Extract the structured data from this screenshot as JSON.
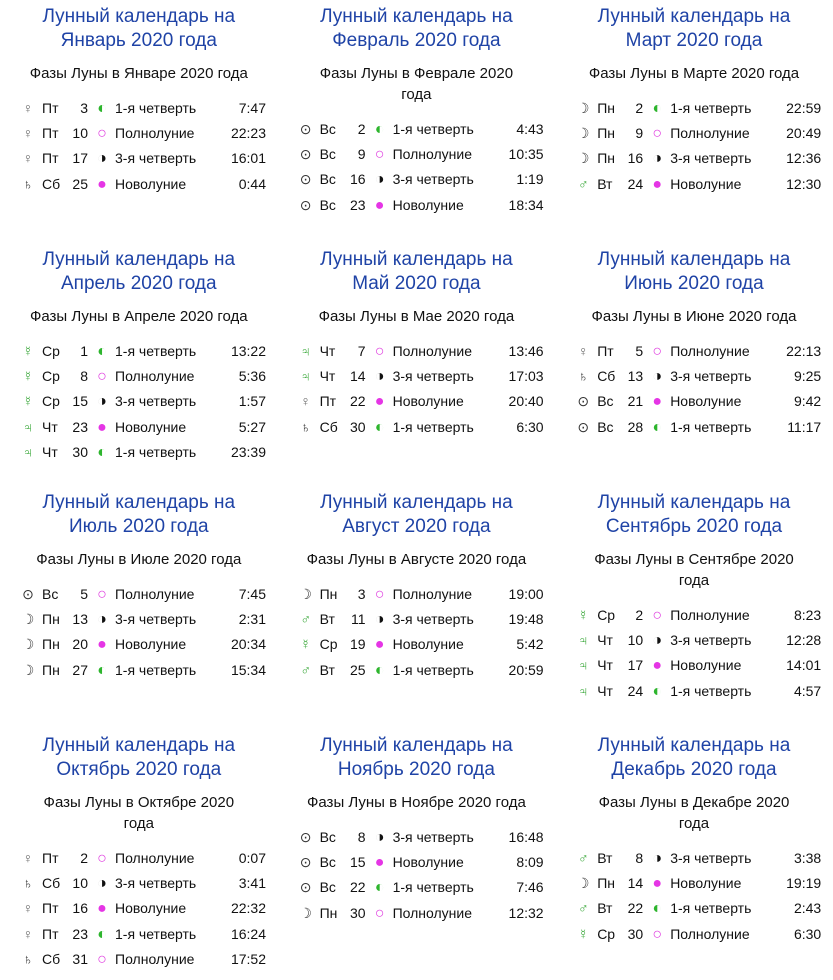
{
  "symbol_colors": {
    "♀": "#666666",
    "♄": "#333333",
    "⊙": "#333333",
    "☽": "#333333",
    "♂": "#3aa83a",
    "☿": "#3aa83a",
    "♃": "#3aa83a",
    "◐": "#2db52d",
    "○": "#e040e0",
    "◑": "#111111",
    "●": "#e535e5"
  },
  "months": [
    {
      "title": [
        "Лунный календарь на",
        "Январь 2020 года"
      ],
      "subtitle": [
        "Фазы Луны в Январе 2020 года"
      ],
      "rows": [
        [
          "♀",
          "Пт",
          3,
          "◐",
          "1-я четверть",
          "7:47"
        ],
        [
          "♀",
          "Пт",
          10,
          "○",
          "Полнолуние",
          "22:23"
        ],
        [
          "♀",
          "Пт",
          17,
          "◑",
          "3-я четверть",
          "16:01"
        ],
        [
          "♄",
          "Сб",
          25,
          "●",
          "Новолуние",
          "0:44"
        ]
      ]
    },
    {
      "title": [
        "Лунный календарь на",
        "Февраль 2020 года"
      ],
      "subtitle": [
        "Фазы Луны в Феврале 2020",
        "года"
      ],
      "rows": [
        [
          "⊙",
          "Вс",
          2,
          "◐",
          "1-я четверть",
          "4:43"
        ],
        [
          "⊙",
          "Вс",
          9,
          "○",
          "Полнолуние",
          "10:35"
        ],
        [
          "⊙",
          "Вс",
          16,
          "◑",
          "3-я четверть",
          "1:19"
        ],
        [
          "⊙",
          "Вс",
          23,
          "●",
          "Новолуние",
          "18:34"
        ]
      ]
    },
    {
      "title": [
        "Лунный календарь на",
        "Март 2020 года"
      ],
      "subtitle": [
        "Фазы Луны в Марте 2020 года"
      ],
      "rows": [
        [
          "☽",
          "Пн",
          2,
          "◐",
          "1-я четверть",
          "22:59"
        ],
        [
          "☽",
          "Пн",
          9,
          "○",
          "Полнолуние",
          "20:49"
        ],
        [
          "☽",
          "Пн",
          16,
          "◑",
          "3-я четверть",
          "12:36"
        ],
        [
          "♂",
          "Вт",
          24,
          "●",
          "Новолуние",
          "12:30"
        ]
      ]
    },
    {
      "title": [
        "Лунный календарь на",
        "Апрель 2020 года"
      ],
      "subtitle": [
        "Фазы Луны в Апреле 2020 года"
      ],
      "rows": [
        [
          "☿",
          "Ср",
          1,
          "◐",
          "1-я четверть",
          "13:22"
        ],
        [
          "☿",
          "Ср",
          8,
          "○",
          "Полнолуние",
          "5:36"
        ],
        [
          "☿",
          "Ср",
          15,
          "◑",
          "3-я четверть",
          "1:57"
        ],
        [
          "♃",
          "Чт",
          23,
          "●",
          "Новолуние",
          "5:27"
        ],
        [
          "♃",
          "Чт",
          30,
          "◐",
          "1-я четверть",
          "23:39"
        ]
      ]
    },
    {
      "title": [
        "Лунный календарь на",
        "Май 2020 года"
      ],
      "subtitle": [
        "Фазы Луны в Мае 2020 года"
      ],
      "rows": [
        [
          "♃",
          "Чт",
          7,
          "○",
          "Полнолуние",
          "13:46"
        ],
        [
          "♃",
          "Чт",
          14,
          "◑",
          "3-я четверть",
          "17:03"
        ],
        [
          "♀",
          "Пт",
          22,
          "●",
          "Новолуние",
          "20:40"
        ],
        [
          "♄",
          "Сб",
          30,
          "◐",
          "1-я четверть",
          "6:30"
        ]
      ]
    },
    {
      "title": [
        "Лунный календарь на",
        "Июнь 2020 года"
      ],
      "subtitle": [
        "Фазы Луны в Июне 2020 года"
      ],
      "rows": [
        [
          "♀",
          "Пт",
          5,
          "○",
          "Полнолуние",
          "22:13"
        ],
        [
          "♄",
          "Сб",
          13,
          "◑",
          "3-я четверть",
          "9:25"
        ],
        [
          "⊙",
          "Вс",
          21,
          "●",
          "Новолуние",
          "9:42"
        ],
        [
          "⊙",
          "Вс",
          28,
          "◐",
          "1-я четверть",
          "11:17"
        ]
      ]
    },
    {
      "title": [
        "Лунный календарь на",
        "Июль 2020 года"
      ],
      "subtitle": [
        "Фазы Луны в Июле 2020 года"
      ],
      "rows": [
        [
          "⊙",
          "Вс",
          5,
          "○",
          "Полнолуние",
          "7:45"
        ],
        [
          "☽",
          "Пн",
          13,
          "◑",
          "3-я четверть",
          "2:31"
        ],
        [
          "☽",
          "Пн",
          20,
          "●",
          "Новолуние",
          "20:34"
        ],
        [
          "☽",
          "Пн",
          27,
          "◐",
          "1-я четверть",
          "15:34"
        ]
      ]
    },
    {
      "title": [
        "Лунный календарь на",
        "Август 2020 года"
      ],
      "subtitle": [
        "Фазы Луны в Августе 2020 года"
      ],
      "rows": [
        [
          "☽",
          "Пн",
          3,
          "○",
          "Полнолуние",
          "19:00"
        ],
        [
          "♂",
          "Вт",
          11,
          "◑",
          "3-я четверть",
          "19:48"
        ],
        [
          "☿",
          "Ср",
          19,
          "●",
          "Новолуние",
          "5:42"
        ],
        [
          "♂",
          "Вт",
          25,
          "◐",
          "1-я четверть",
          "20:59"
        ]
      ]
    },
    {
      "title": [
        "Лунный календарь на",
        "Сентябрь 2020 года"
      ],
      "subtitle": [
        "Фазы Луны в Сентябре 2020",
        "года"
      ],
      "rows": [
        [
          "☿",
          "Ср",
          2,
          "○",
          "Полнолуние",
          "8:23"
        ],
        [
          "♃",
          "Чт",
          10,
          "◑",
          "3-я четверть",
          "12:28"
        ],
        [
          "♃",
          "Чт",
          17,
          "●",
          "Новолуние",
          "14:01"
        ],
        [
          "♃",
          "Чт",
          24,
          "◐",
          "1-я четверть",
          "4:57"
        ]
      ]
    },
    {
      "title": [
        "Лунный календарь на",
        "Октябрь 2020 года"
      ],
      "subtitle": [
        "Фазы Луны в Октябре 2020",
        "года"
      ],
      "rows": [
        [
          "♀",
          "Пт",
          2,
          "○",
          "Полнолуние",
          "0:07"
        ],
        [
          "♄",
          "Сб",
          10,
          "◑",
          "3-я четверть",
          "3:41"
        ],
        [
          "♀",
          "Пт",
          16,
          "●",
          "Новолуние",
          "22:32"
        ],
        [
          "♀",
          "Пт",
          23,
          "◐",
          "1-я четверть",
          "16:24"
        ],
        [
          "♄",
          "Сб",
          31,
          "○",
          "Полнолуние",
          "17:52"
        ]
      ]
    },
    {
      "title": [
        "Лунный календарь на",
        "Ноябрь 2020 года"
      ],
      "subtitle": [
        "Фазы Луны в Ноябре 2020 года"
      ],
      "rows": [
        [
          "⊙",
          "Вс",
          8,
          "◑",
          "3-я четверть",
          "16:48"
        ],
        [
          "⊙",
          "Вс",
          15,
          "●",
          "Новолуние",
          "8:09"
        ],
        [
          "⊙",
          "Вс",
          22,
          "◐",
          "1-я четверть",
          "7:46"
        ],
        [
          "☽",
          "Пн",
          30,
          "○",
          "Полнолуние",
          "12:32"
        ]
      ]
    },
    {
      "title": [
        "Лунный календарь на",
        "Декабрь 2020 года"
      ],
      "subtitle": [
        "Фазы Луны в Декабре 2020",
        "года"
      ],
      "rows": [
        [
          "♂",
          "Вт",
          8,
          "◑",
          "3-я четверть",
          "3:38"
        ],
        [
          "☽",
          "Пн",
          14,
          "●",
          "Новолуние",
          "19:19"
        ],
        [
          "♂",
          "Вт",
          22,
          "◐",
          "1-я четверть",
          "2:43"
        ],
        [
          "☿",
          "Ср",
          30,
          "○",
          "Полнолуние",
          "6:30"
        ]
      ]
    }
  ]
}
